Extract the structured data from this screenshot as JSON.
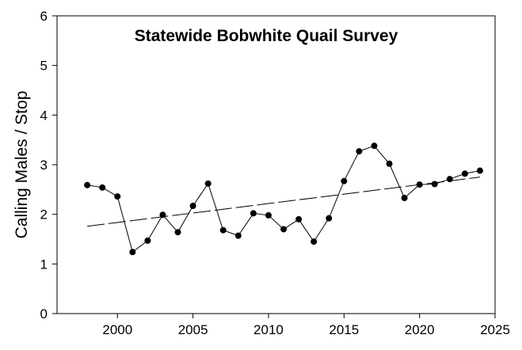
{
  "chart_data": {
    "type": "line",
    "title": "Statewide Bobwhite Quail Survey",
    "xlabel": "",
    "ylabel": "Calling Males / Stop",
    "xlim": [
      1996,
      2025
    ],
    "ylim": [
      0,
      6
    ],
    "x_ticks": [
      2000,
      2005,
      2010,
      2015,
      2020,
      2025
    ],
    "y_ticks": [
      0,
      1,
      2,
      3,
      4,
      5,
      6
    ],
    "grid": false,
    "legend": "none",
    "series": [
      {
        "style": "solid line with filled circle markers",
        "color": "#000000",
        "x": [
          1998,
          1999,
          2000,
          2001,
          2002,
          2003,
          2004,
          2005,
          2006,
          2007,
          2008,
          2009,
          2010,
          2011,
          2012,
          2013,
          2014,
          2015,
          2016,
          2017,
          2018,
          2019,
          2020,
          2021,
          2022,
          2023,
          2024
        ],
        "y": [
          2.59,
          2.54,
          2.36,
          1.24,
          1.47,
          1.99,
          1.64,
          2.17,
          2.62,
          1.68,
          1.57,
          2.02,
          1.98,
          1.7,
          1.9,
          1.45,
          1.92,
          2.67,
          3.27,
          3.38,
          3.02,
          2.33,
          2.6,
          2.61,
          2.71,
          2.82,
          2.88
        ]
      },
      {
        "style": "long-dash trend line",
        "color": "#000000",
        "x": [
          1998,
          2024
        ],
        "y": [
          1.76,
          2.75
        ]
      }
    ]
  }
}
